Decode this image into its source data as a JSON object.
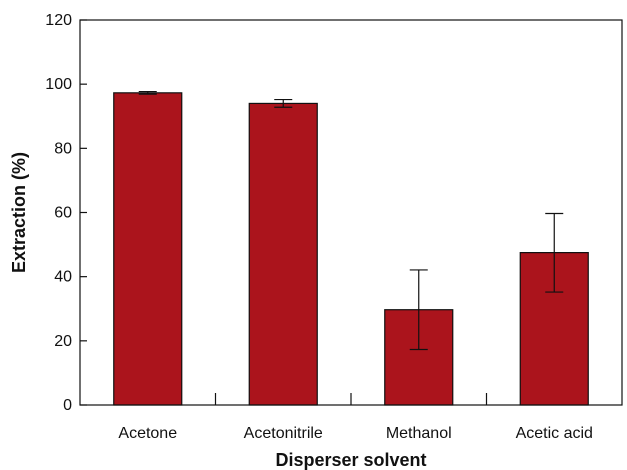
{
  "chart_data": {
    "type": "bar",
    "title": "",
    "xlabel": "Disperser solvent",
    "ylabel": "Extraction (%)",
    "categories": [
      "Acetone",
      "Acetonitrile",
      "Methanol",
      "Acetic acid"
    ],
    "values": [
      97.3,
      94.0,
      29.7,
      47.5
    ],
    "error": [
      {
        "low": 96.9,
        "high": 97.7
      },
      {
        "low": 92.8,
        "high": 95.2
      },
      {
        "low": 17.3,
        "high": 42.1
      },
      {
        "low": 35.2,
        "high": 59.7
      }
    ],
    "ylim": [
      0,
      120
    ],
    "yticks": [
      0,
      20,
      40,
      60,
      80,
      100,
      120
    ],
    "grid": false,
    "legend": "none",
    "bar_color": "#ab141c"
  }
}
